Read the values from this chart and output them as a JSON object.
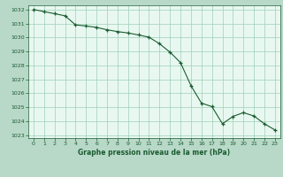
{
  "xlabel": "Graphe pression niveau de la mer (hPa)",
  "background_color": "#b8d8c8",
  "plot_bg_color": "#e8f8f0",
  "grid_color": "#9ecfb8",
  "line_color": "#1a5c30",
  "marker_color": "#1a5c30",
  "ylim": [
    1022.8,
    1032.3
  ],
  "xlim": [
    -0.5,
    23.5
  ],
  "yticks": [
    1023,
    1024,
    1025,
    1026,
    1027,
    1028,
    1029,
    1030,
    1031,
    1032
  ],
  "xticks": [
    0,
    1,
    2,
    3,
    4,
    5,
    6,
    7,
    8,
    9,
    10,
    11,
    12,
    13,
    14,
    15,
    16,
    17,
    18,
    19,
    20,
    21,
    22,
    23
  ],
  "hours": [
    0,
    1,
    2,
    3,
    4,
    5,
    6,
    7,
    8,
    9,
    10,
    11,
    12,
    13,
    14,
    15,
    16,
    17,
    18,
    19,
    20,
    21,
    22,
    23
  ],
  "pressure": [
    1032.0,
    1031.85,
    1031.7,
    1031.55,
    1030.9,
    1030.82,
    1030.72,
    1030.55,
    1030.42,
    1030.32,
    1030.18,
    1030.02,
    1029.55,
    1028.95,
    1028.2,
    1026.55,
    1025.3,
    1025.05,
    1023.82,
    1024.35,
    1024.62,
    1024.38,
    1023.82,
    1023.38
  ]
}
